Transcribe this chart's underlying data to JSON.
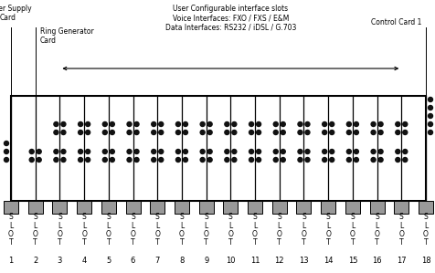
{
  "num_slots": 18,
  "slot_labels": [
    "1",
    "2",
    "3",
    "4",
    "5",
    "6",
    "7",
    "8",
    "9",
    "10",
    "11",
    "12",
    "13",
    "14",
    "15",
    "16",
    "17",
    "18"
  ],
  "fig_width": 4.77,
  "fig_height": 2.99,
  "bg_color": "#ffffff",
  "labels": {
    "power_supply": "Power Supply\nCard",
    "ring_generator": "Ring Generator\nCard",
    "user_config": "User Configurable interface slots\nVoice Interfaces: FXO / FXS / E&M\nData Interfaces: RS232 / iDSL / G.703",
    "control_card": "Control Card 1"
  },
  "gray_color": "#999999",
  "dot_color": "#111111",
  "dot_patterns": [
    {
      "upper": 0,
      "lower": 3,
      "side": "left"
    },
    {
      "upper": 0,
      "lower": 2,
      "side": "center"
    },
    {
      "upper": 2,
      "lower": 2,
      "side": "center"
    },
    {
      "upper": 2,
      "lower": 2,
      "side": "center"
    },
    {
      "upper": 2,
      "lower": 2,
      "side": "center"
    },
    {
      "upper": 2,
      "lower": 2,
      "side": "center"
    },
    {
      "upper": 2,
      "lower": 2,
      "side": "center"
    },
    {
      "upper": 2,
      "lower": 2,
      "side": "center"
    },
    {
      "upper": 2,
      "lower": 2,
      "side": "center"
    },
    {
      "upper": 2,
      "lower": 2,
      "side": "center"
    },
    {
      "upper": 2,
      "lower": 2,
      "side": "center"
    },
    {
      "upper": 2,
      "lower": 2,
      "side": "center"
    },
    {
      "upper": 2,
      "lower": 2,
      "side": "center"
    },
    {
      "upper": 2,
      "lower": 2,
      "side": "center"
    },
    {
      "upper": 2,
      "lower": 2,
      "side": "center"
    },
    {
      "upper": 2,
      "lower": 2,
      "side": "center"
    },
    {
      "upper": 2,
      "lower": 2,
      "side": "center"
    },
    {
      "upper": 5,
      "lower": 0,
      "side": "right"
    }
  ]
}
